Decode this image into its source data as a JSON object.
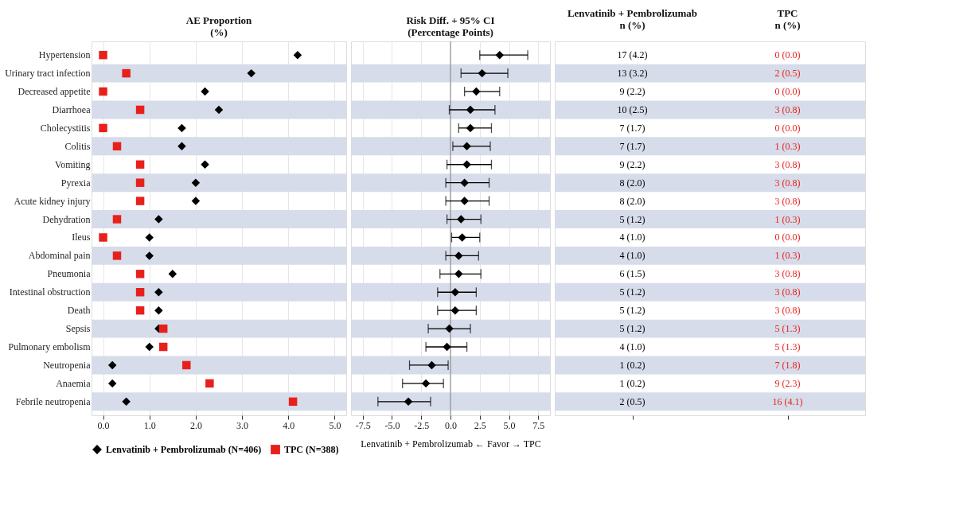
{
  "chart_data": [
    {
      "type": "scatter",
      "title": "AE Proportion\n(%)",
      "orientation": "horizontal",
      "categories": [
        "Hypertension",
        "Urinary tract infection",
        "Decreased appetite",
        "Diarrhoea",
        "Cholecystitis",
        "Colitis",
        "Vomiting",
        "Pyrexia",
        "Acute kidney injury",
        "Dehydration",
        "Ileus",
        "Abdominal pain",
        "Pneumonia",
        "Intestinal obstruction",
        "Death",
        "Sepsis",
        "Pulmonary embolism",
        "Neutropenia",
        "Anaemia",
        "Febrile neutropenia"
      ],
      "series": [
        {
          "name": "Lenvatinib + Pembrolizumab (N=406)",
          "color": "#000000",
          "marker": "diamond",
          "values": [
            4.2,
            3.2,
            2.2,
            2.5,
            1.7,
            1.7,
            2.2,
            2.0,
            2.0,
            1.2,
            1.0,
            1.0,
            1.5,
            1.2,
            1.2,
            1.2,
            1.0,
            0.2,
            0.2,
            0.5
          ],
          "value_labels": [
            "17 (4.2)",
            "13 (3.2)",
            "9 (2.2)",
            "10 (2.5)",
            "7 (1.7)",
            "7 (1.7)",
            "9 (2.2)",
            "8 (2.0)",
            "8 (2.0)",
            "5 (1.2)",
            "4 (1.0)",
            "4 (1.0)",
            "6 (1.5)",
            "5 (1.2)",
            "5 (1.2)",
            "5 (1.2)",
            "4 (1.0)",
            "1 (0.2)",
            "1 (0.2)",
            "2 (0.5)"
          ]
        },
        {
          "name": "TPC (N=388)",
          "color": "#e8201c",
          "marker": "square",
          "values": [
            0.0,
            0.5,
            0.0,
            0.8,
            0.0,
            0.3,
            0.8,
            0.8,
            0.8,
            0.3,
            0.0,
            0.3,
            0.8,
            0.8,
            0.8,
            1.3,
            1.3,
            1.8,
            2.3,
            4.1
          ],
          "value_labels": [
            "0 (0.0)",
            "2 (0.5)",
            "0 (0.0)",
            "3 (0.8)",
            "0 (0.0)",
            "1 (0.3)",
            "3 (0.8)",
            "3 (0.8)",
            "3 (0.8)",
            "1 (0.3)",
            "0 (0.0)",
            "1 (0.3)",
            "3 (0.8)",
            "3 (0.8)",
            "3 (0.8)",
            "5 (1.3)",
            "5 (1.3)",
            "7 (1.8)",
            "9 (2.3)",
            "16 (4.1)"
          ]
        }
      ],
      "annotations": [
        "Lenvatinib + Pembrolizumab\nn (%)",
        "TPC\nn (%)"
      ],
      "xlim": [
        -0.25,
        5.25
      ],
      "xticks": [
        {
          "value": 0,
          "label": "0.0"
        },
        {
          "value": 1,
          "label": "1.0"
        },
        {
          "value": 2,
          "label": "2.0"
        },
        {
          "value": 3,
          "label": "3.0"
        },
        {
          "value": 4,
          "label": "4.0"
        },
        {
          "value": 5,
          "label": "5.0"
        }
      ],
      "grid": "x",
      "legend": "bottom",
      "bands": [
        {
          "axis": "y",
          "from": "Urinary tract infection",
          "to": "Urinary tract infection",
          "color": "#d6dce9"
        },
        {
          "axis": "y",
          "from": "Diarrhoea",
          "to": "Diarrhoea",
          "color": "#d6dce9"
        },
        {
          "axis": "y",
          "from": "Colitis",
          "to": "Colitis",
          "color": "#d6dce9"
        },
        {
          "axis": "y",
          "from": "Pyrexia",
          "to": "Pyrexia",
          "color": "#d6dce9"
        },
        {
          "axis": "y",
          "from": "Dehydration",
          "to": "Dehydration",
          "color": "#d6dce9"
        },
        {
          "axis": "y",
          "from": "Abdominal pain",
          "to": "Abdominal pain",
          "color": "#d6dce9"
        },
        {
          "axis": "y",
          "from": "Intestinal obstruction",
          "to": "Intestinal obstruction",
          "color": "#d6dce9"
        },
        {
          "axis": "y",
          "from": "Sepsis",
          "to": "Sepsis",
          "color": "#d6dce9"
        },
        {
          "axis": "y",
          "from": "Neutropenia",
          "to": "Neutropenia",
          "color": "#d6dce9"
        },
        {
          "axis": "y",
          "from": "Febrile neutropenia",
          "to": "Febrile neutropenia",
          "color": "#d6dce9"
        }
      ]
    },
    {
      "type": "scatter",
      "title": "Risk Diff. + 95% CI\n(Percentage Points)",
      "xlabel": "Lenvatinib + Pembrolizumab ← Favor → TPC",
      "orientation": "horizontal",
      "tick_labels": "x",
      "categories": [
        "Hypertension",
        "Urinary tract infection",
        "Decreased appetite",
        "Diarrhoea",
        "Cholecystitis",
        "Colitis",
        "Vomiting",
        "Pyrexia",
        "Acute kidney injury",
        "Dehydration",
        "Ileus",
        "Abdominal pain",
        "Pneumonia",
        "Intestinal obstruction",
        "Death",
        "Sepsis",
        "Pulmonary embolism",
        "Neutropenia",
        "Anaemia",
        "Febrile neutropenia"
      ],
      "color": "#000000",
      "marker": "diamond",
      "values": [
        4.2,
        2.7,
        2.2,
        1.7,
        1.7,
        1.4,
        1.4,
        1.2,
        1.2,
        0.9,
        1.0,
        0.7,
        0.7,
        0.4,
        0.4,
        -0.1,
        -0.3,
        -1.6,
        -2.1,
        -3.6
      ],
      "errors": [
        [
          2.5,
          6.6
        ],
        [
          0.9,
          4.9
        ],
        [
          1.2,
          4.2
        ],
        [
          -0.1,
          3.8
        ],
        [
          0.7,
          3.5
        ],
        [
          0.2,
          3.4
        ],
        [
          -0.3,
          3.5
        ],
        [
          -0.4,
          3.3
        ],
        [
          -0.4,
          3.3
        ],
        [
          -0.3,
          2.6
        ],
        [
          0.1,
          2.5
        ],
        [
          -0.4,
          2.4
        ],
        [
          -0.9,
          2.6
        ],
        [
          -1.1,
          2.2
        ],
        [
          -1.1,
          2.2
        ],
        [
          -1.9,
          1.7
        ],
        [
          -2.1,
          1.4
        ],
        [
          -3.5,
          -0.2
        ],
        [
          -4.1,
          -0.6
        ],
        [
          -6.2,
          -1.7
        ]
      ],
      "xlim": [
        -8.5,
        8.5
      ],
      "xticks": [
        {
          "value": -7.5,
          "label": "-7.5"
        },
        {
          "value": -5,
          "label": "-5.0"
        },
        {
          "value": -2.5,
          "label": "-2.5"
        },
        {
          "value": 0,
          "label": "0.0"
        },
        {
          "value": 2.5,
          "label": "2.5"
        },
        {
          "value": 5,
          "label": "5.0"
        },
        {
          "value": 7.5,
          "label": "7.5"
        }
      ],
      "grid": "x",
      "ref_lines": [
        {
          "axis": "x",
          "value": 0,
          "color": "#7f7f7f"
        }
      ],
      "bands": [
        {
          "axis": "y",
          "from": "Urinary tract infection",
          "to": "Urinary tract infection",
          "color": "#d6dce9"
        },
        {
          "axis": "y",
          "from": "Diarrhoea",
          "to": "Diarrhoea",
          "color": "#d6dce9"
        },
        {
          "axis": "y",
          "from": "Colitis",
          "to": "Colitis",
          "color": "#d6dce9"
        },
        {
          "axis": "y",
          "from": "Pyrexia",
          "to": "Pyrexia",
          "color": "#d6dce9"
        },
        {
          "axis": "y",
          "from": "Dehydration",
          "to": "Dehydration",
          "color": "#d6dce9"
        },
        {
          "axis": "y",
          "from": "Abdominal pain",
          "to": "Abdominal pain",
          "color": "#d6dce9"
        },
        {
          "axis": "y",
          "from": "Intestinal obstruction",
          "to": "Intestinal obstruction",
          "color": "#d6dce9"
        },
        {
          "axis": "y",
          "from": "Sepsis",
          "to": "Sepsis",
          "color": "#d6dce9"
        },
        {
          "axis": "y",
          "from": "Neutropenia",
          "to": "Neutropenia",
          "color": "#d6dce9"
        },
        {
          "axis": "y",
          "from": "Febrile neutropenia",
          "to": "Febrile neutropenia",
          "color": "#d6dce9"
        }
      ]
    }
  ]
}
